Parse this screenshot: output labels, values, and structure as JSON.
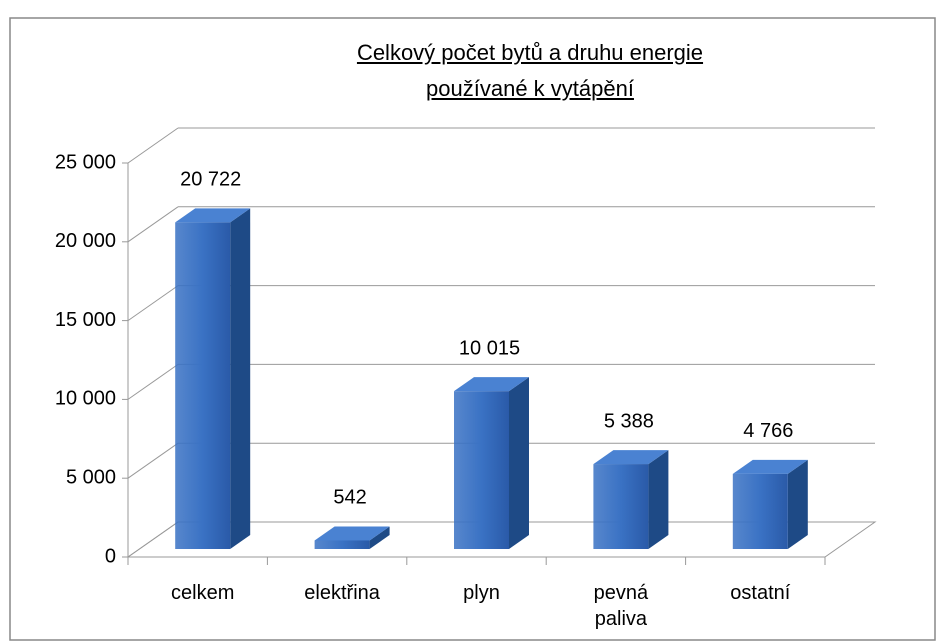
{
  "chart_data": {
    "type": "bar3d",
    "title": [
      "Celkový počet bytů a druhu energie",
      "používané  k vytápění"
    ],
    "categories": [
      "celkem",
      "elektřina",
      "plyn",
      "pevná paliva",
      "ostatní"
    ],
    "values": [
      20722,
      542,
      10015,
      5388,
      4766
    ],
    "value_labels": [
      "20 722",
      "542",
      "10 015",
      "5 388",
      "4 766"
    ],
    "color": "#3a72c4",
    "ylim": [
      0,
      25000
    ],
    "yticks": [
      0,
      {
        "value": 5000,
        "label": "5 000"
      },
      {
        "value": 10000,
        "label": "10 000"
      },
      {
        "value": 15000,
        "label": "15 000"
      },
      {
        "value": 20000,
        "label": "20 000"
      },
      {
        "value": 25000,
        "label": "25 000"
      }
    ],
    "grid": true
  }
}
